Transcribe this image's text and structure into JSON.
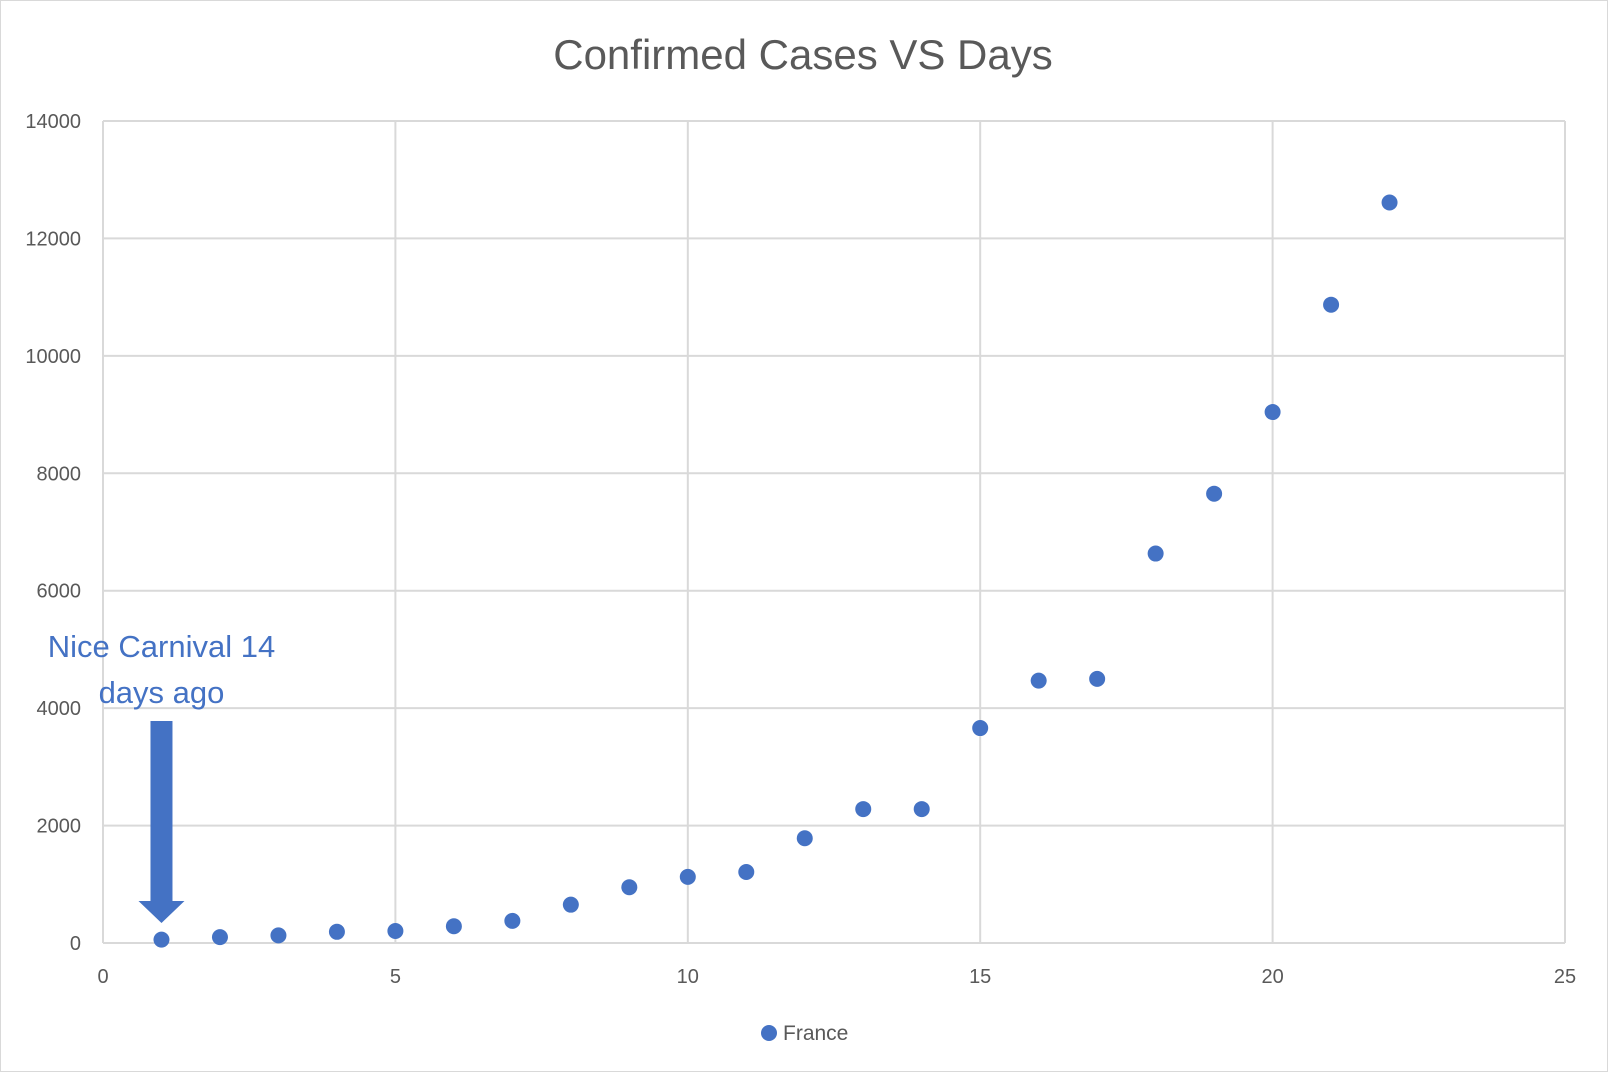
{
  "chart_data": {
    "type": "scatter",
    "title": "Confirmed Cases VS Days",
    "xlabel": "",
    "ylabel": "",
    "xlim": [
      0,
      25
    ],
    "ylim": [
      0,
      14000
    ],
    "xticks": [
      0,
      5,
      10,
      15,
      20,
      25
    ],
    "yticks": [
      0,
      2000,
      4000,
      6000,
      8000,
      10000,
      12000,
      14000
    ],
    "grid": true,
    "legend_position": "bottom",
    "series": [
      {
        "name": "France",
        "color": "#4472c4",
        "x": [
          1,
          2,
          3,
          4,
          5,
          6,
          7,
          8,
          9,
          10,
          11,
          12,
          13,
          14,
          15,
          16,
          17,
          18,
          19,
          20,
          21,
          22
        ],
        "y": [
          57,
          100,
          130,
          191,
          204,
          285,
          377,
          653,
          949,
          1126,
          1209,
          1784,
          2281,
          2281,
          3661,
          4469,
          4499,
          6633,
          7652,
          9043,
          10871,
          12612
        ]
      }
    ],
    "annotations": [
      {
        "lines": [
          "Nice Carnival 14",
          "days ago"
        ],
        "target_x": 1,
        "color": "#4472c4"
      }
    ]
  }
}
